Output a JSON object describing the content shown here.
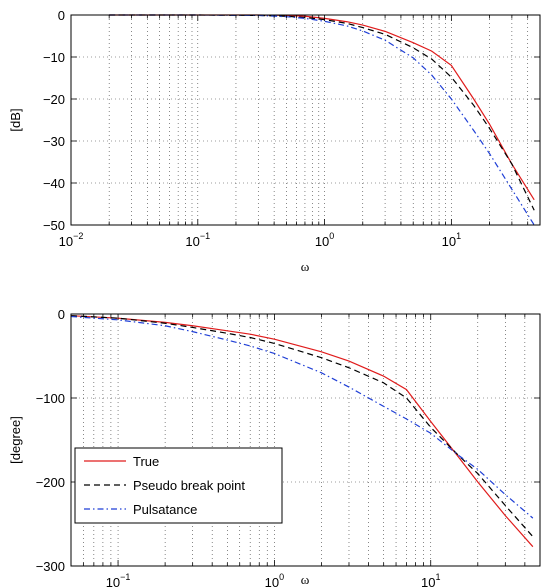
{
  "chart_data": [
    {
      "type": "line",
      "xscale": "log",
      "xlim": [
        0.01,
        50
      ],
      "ylim": [
        -50,
        0
      ],
      "grid": true,
      "xlabel": "ω",
      "ylabel": "[dB]",
      "xticks": [
        {
          "value": 0.01,
          "base": "10",
          "exp": "−2"
        },
        {
          "value": 0.1,
          "base": "10",
          "exp": "−1"
        },
        {
          "value": 1,
          "base": "10",
          "exp": "0"
        },
        {
          "value": 10,
          "base": "10",
          "exp": "1"
        }
      ],
      "yticks": [
        {
          "value": 0,
          "label": "0"
        },
        {
          "value": -10,
          "label": "−10"
        },
        {
          "value": -20,
          "label": "−20"
        },
        {
          "value": -30,
          "label": "−30"
        },
        {
          "value": -40,
          "label": "−40"
        },
        {
          "value": -50,
          "label": "−50"
        }
      ],
      "series": [
        {
          "name": "True",
          "color": "#e01c1c",
          "dash": "solid",
          "points": [
            [
              0.02,
              0
            ],
            [
              0.1,
              0
            ],
            [
              0.3,
              0
            ],
            [
              0.5,
              -0.1
            ],
            [
              0.7,
              -0.3
            ],
            [
              1,
              -0.8
            ],
            [
              1.5,
              -1.6
            ],
            [
              2,
              -2.4
            ],
            [
              3,
              -3.9
            ],
            [
              5,
              -6.6
            ],
            [
              7,
              -8.6
            ],
            [
              10,
              -12
            ],
            [
              15,
              -20
            ],
            [
              20,
              -26
            ],
            [
              30,
              -35.5
            ],
            [
              45,
              -44
            ]
          ]
        },
        {
          "name": "Pseudo break point",
          "color": "#000000",
          "dash": "dashed",
          "points": [
            [
              0.02,
              0
            ],
            [
              0.1,
              0
            ],
            [
              0.3,
              -0.1
            ],
            [
              0.5,
              -0.3
            ],
            [
              0.7,
              -0.6
            ],
            [
              1,
              -1.1
            ],
            [
              1.5,
              -2
            ],
            [
              2,
              -3
            ],
            [
              3,
              -4.6
            ],
            [
              5,
              -7.8
            ],
            [
              7,
              -10.5
            ],
            [
              10,
              -14.8
            ],
            [
              15,
              -21.5
            ],
            [
              20,
              -27
            ],
            [
              30,
              -35.5
            ],
            [
              45,
              -46.5
            ]
          ]
        },
        {
          "name": "Pulsatance",
          "color": "#1f3fd6",
          "dash": "dashdot",
          "points": [
            [
              0.02,
              0
            ],
            [
              0.1,
              0
            ],
            [
              0.3,
              -0.1
            ],
            [
              0.5,
              -0.4
            ],
            [
              0.7,
              -0.8
            ],
            [
              1,
              -1.5
            ],
            [
              1.5,
              -2.6
            ],
            [
              2,
              -3.8
            ],
            [
              3,
              -6
            ],
            [
              5,
              -10.2
            ],
            [
              7,
              -14.3
            ],
            [
              10,
              -20
            ],
            [
              15,
              -27.5
            ],
            [
              20,
              -33
            ],
            [
              30,
              -41.5
            ],
            [
              45,
              -50
            ]
          ]
        }
      ]
    },
    {
      "type": "line",
      "xscale": "log",
      "xlim": [
        0.05,
        50
      ],
      "ylim": [
        -300,
        0
      ],
      "grid": true,
      "xlabel": "ω",
      "ylabel": "[degree]",
      "xticks": [
        {
          "value": 0.1,
          "base": "10",
          "exp": "−1"
        },
        {
          "value": 1,
          "base": "10",
          "exp": "0"
        },
        {
          "value": 10,
          "base": "10",
          "exp": "1"
        }
      ],
      "yticks": [
        {
          "value": 0,
          "label": "0"
        },
        {
          "value": -100,
          "label": "−100"
        },
        {
          "value": -200,
          "label": "−200"
        },
        {
          "value": -300,
          "label": "−300"
        }
      ],
      "legend": {
        "location": "lower-left",
        "entries": [
          "True",
          "Pseudo break point",
          "Pulsatance"
        ]
      },
      "series": [
        {
          "name": "True",
          "color": "#e01c1c",
          "dash": "solid",
          "points": [
            [
              0.05,
              -2
            ],
            [
              0.1,
              -5
            ],
            [
              0.2,
              -10
            ],
            [
              0.3,
              -14
            ],
            [
              0.5,
              -20
            ],
            [
              0.7,
              -24
            ],
            [
              1,
              -30
            ],
            [
              2,
              -45
            ],
            [
              3,
              -56
            ],
            [
              5,
              -74
            ],
            [
              7,
              -90
            ],
            [
              10,
              -128
            ],
            [
              15,
              -170
            ],
            [
              20,
              -200
            ],
            [
              30,
              -240
            ],
            [
              45,
              -277
            ]
          ]
        },
        {
          "name": "Pseudo break point",
          "color": "#000000",
          "dash": "dashed",
          "points": [
            [
              0.05,
              -2
            ],
            [
              0.1,
              -5
            ],
            [
              0.2,
              -11
            ],
            [
              0.3,
              -16
            ],
            [
              0.5,
              -23
            ],
            [
              0.7,
              -28
            ],
            [
              1,
              -35
            ],
            [
              2,
              -52
            ],
            [
              3,
              -64
            ],
            [
              5,
              -82
            ],
            [
              7,
              -100
            ],
            [
              10,
              -135
            ],
            [
              15,
              -168
            ],
            [
              20,
              -190
            ],
            [
              30,
              -228
            ],
            [
              45,
              -265
            ]
          ]
        },
        {
          "name": "Pulsatance",
          "color": "#1f3fd6",
          "dash": "dashdot",
          "points": [
            [
              0.05,
              -3
            ],
            [
              0.1,
              -7
            ],
            [
              0.2,
              -14
            ],
            [
              0.3,
              -21
            ],
            [
              0.5,
              -31
            ],
            [
              0.7,
              -38
            ],
            [
              1,
              -47
            ],
            [
              2,
              -70
            ],
            [
              3,
              -87
            ],
            [
              5,
              -110
            ],
            [
              7,
              -125
            ],
            [
              10,
              -142
            ],
            [
              15,
              -168
            ],
            [
              20,
              -185
            ],
            [
              30,
              -215
            ],
            [
              45,
              -243
            ]
          ]
        }
      ]
    }
  ]
}
